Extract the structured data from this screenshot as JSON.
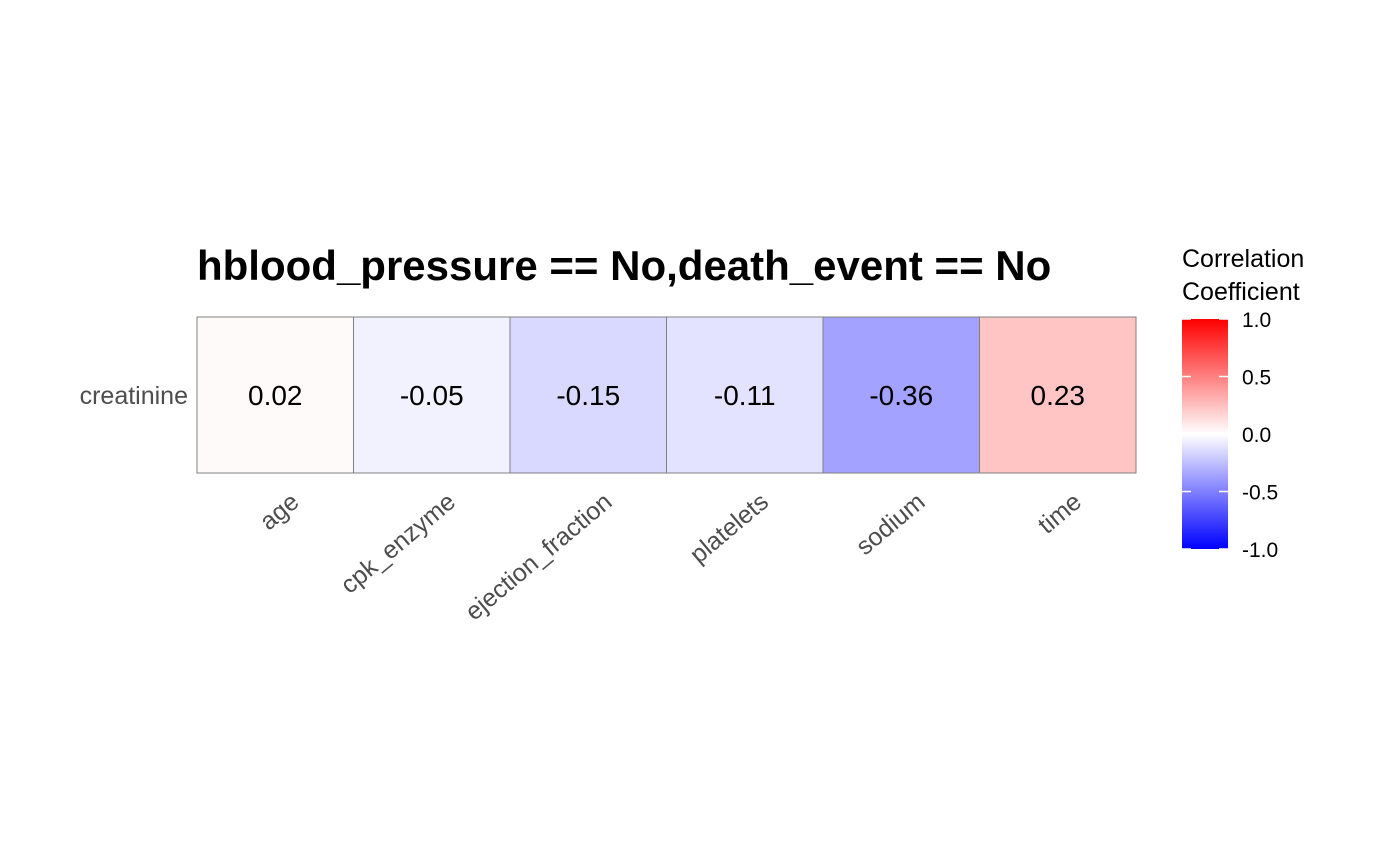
{
  "chart_data": {
    "type": "heatmap",
    "title": "hblood_pressure == No,death_event == No",
    "x_categories": [
      "age",
      "cpk_enzyme",
      "ejection_fraction",
      "platelets",
      "sodium",
      "time"
    ],
    "y_categories": [
      "creatinine"
    ],
    "cells": [
      {
        "x": "age",
        "y": "creatinine",
        "value": 0.02,
        "label": "0.02"
      },
      {
        "x": "cpk_enzyme",
        "y": "creatinine",
        "value": -0.05,
        "label": "-0.05"
      },
      {
        "x": "ejection_fraction",
        "y": "creatinine",
        "value": -0.15,
        "label": "-0.15"
      },
      {
        "x": "platelets",
        "y": "creatinine",
        "value": -0.11,
        "label": "-0.11"
      },
      {
        "x": "sodium",
        "y": "creatinine",
        "value": -0.36,
        "label": "-0.36"
      },
      {
        "x": "time",
        "y": "creatinine",
        "value": 0.23,
        "label": "0.23"
      }
    ],
    "colorscale": {
      "low": "#0000FF",
      "mid": "#FFFFFF",
      "high": "#FF0000",
      "limits": [
        -1,
        1
      ]
    },
    "legend": {
      "title_lines": [
        "Correlation",
        "Coefficient"
      ],
      "position": "right",
      "ticks": [
        {
          "value": 1.0,
          "label": "1.0"
        },
        {
          "value": 0.5,
          "label": "0.5"
        },
        {
          "value": 0.0,
          "label": "0.0"
        },
        {
          "value": -0.5,
          "label": "-0.5"
        },
        {
          "value": -1.0,
          "label": "-1.0"
        }
      ]
    }
  }
}
